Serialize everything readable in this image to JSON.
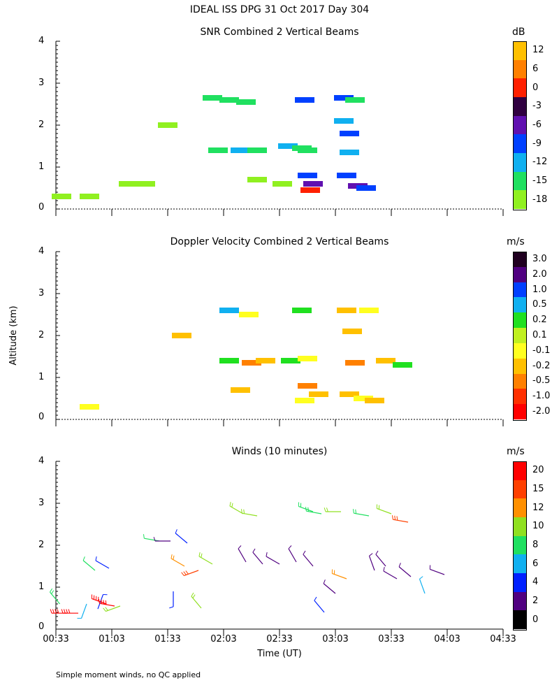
{
  "title": "IDEAL ISS DPG  31 Oct 2017 Day 304",
  "y_axis_label": "Altitude (km)",
  "x_axis_label": "Time (UT)",
  "footnote": "Simple moment winds, no QC applied",
  "x_ticks": [
    "00:33",
    "01:03",
    "01:33",
    "02:03",
    "02:33",
    "03:03",
    "03:33",
    "04:03",
    "04:33"
  ],
  "panels": [
    {
      "title": "SNR Combined 2 Vertical Beams",
      "unit": "dB",
      "y_ticks": [
        "4",
        "3",
        "2",
        "1",
        "0"
      ],
      "colorbar": [
        {
          "label": "12",
          "color": "#FFC000"
        },
        {
          "label": "6",
          "color": "#FF8000"
        },
        {
          "label": "0",
          "color": "#FF2000"
        },
        {
          "label": "-3",
          "color": "#300040"
        },
        {
          "label": "-6",
          "color": "#6010B0"
        },
        {
          "label": "-9",
          "color": "#0040FF"
        },
        {
          "label": "-12",
          "color": "#10B0F0"
        },
        {
          "label": "-15",
          "color": "#20E060"
        },
        {
          "label": "-18",
          "color": "#90F020"
        }
      ]
    },
    {
      "title": "Doppler Velocity Combined 2 Vertical Beams",
      "unit": "m/s",
      "y_ticks": [
        "4",
        "3",
        "2",
        "1",
        "0"
      ],
      "colorbar": [
        {
          "label": "3.0",
          "color": "#200020"
        },
        {
          "label": "2.0",
          "color": "#500080"
        },
        {
          "label": "1.0",
          "color": "#0040FF"
        },
        {
          "label": "0.5",
          "color": "#10B0F0"
        },
        {
          "label": "0.2",
          "color": "#20E020"
        },
        {
          "label": "0.1",
          "color": "#C0F020"
        },
        {
          "label": "-0.1",
          "color": "#FFFF20"
        },
        {
          "label": "-0.2",
          "color": "#FFC000"
        },
        {
          "label": "-0.5",
          "color": "#FF8000"
        },
        {
          "label": "-1.0",
          "color": "#FF3000"
        },
        {
          "label": "-2.0",
          "color": "#FF0000"
        }
      ]
    },
    {
      "title": "Winds (10 minutes)",
      "unit": "m/s",
      "y_ticks": [
        "4",
        "3",
        "2",
        "1",
        "0"
      ],
      "colorbar": [
        {
          "label": "20",
          "color": "#FF0000"
        },
        {
          "label": "15",
          "color": "#FF4000"
        },
        {
          "label": "12",
          "color": "#FF9000"
        },
        {
          "label": "10",
          "color": "#90E020"
        },
        {
          "label": "8",
          "color": "#20E060"
        },
        {
          "label": "6",
          "color": "#10B0F0"
        },
        {
          "label": "4",
          "color": "#0020FF"
        },
        {
          "label": "2",
          "color": "#500080"
        },
        {
          "label": "0",
          "color": "#000000"
        }
      ]
    }
  ],
  "chart_data": [
    {
      "type": "heatmap",
      "title": "SNR Combined 2 Vertical Beams",
      "xlabel": "Time (UT)",
      "ylabel": "Altitude (km)",
      "ylim": [
        0,
        4
      ],
      "xlim": [
        "00:33",
        "04:33"
      ],
      "unit": "dB",
      "cells": [
        {
          "t": 0.1,
          "alt": 0.3,
          "v": -18
        },
        {
          "t": 0.6,
          "alt": 0.3,
          "v": -18
        },
        {
          "t": 1.3,
          "alt": 0.6,
          "v": -18
        },
        {
          "t": 1.6,
          "alt": 0.6,
          "v": -18
        },
        {
          "t": 2.8,
          "alt": 2.65,
          "v": -15
        },
        {
          "t": 3.1,
          "alt": 2.6,
          "v": -15
        },
        {
          "t": 3.4,
          "alt": 2.55,
          "v": -15
        },
        {
          "t": 2.0,
          "alt": 2.0,
          "v": -18
        },
        {
          "t": 2.9,
          "alt": 1.4,
          "v": -15
        },
        {
          "t": 3.3,
          "alt": 1.4,
          "v": -12
        },
        {
          "t": 3.6,
          "alt": 1.4,
          "v": -15
        },
        {
          "t": 4.15,
          "alt": 1.5,
          "v": -12
        },
        {
          "t": 4.4,
          "alt": 1.45,
          "v": -15
        },
        {
          "t": 4.5,
          "alt": 0.8,
          "v": -9
        },
        {
          "t": 4.55,
          "alt": 0.45,
          "v": 0
        },
        {
          "t": 4.6,
          "alt": 0.6,
          "v": -6
        },
        {
          "t": 4.45,
          "alt": 2.6,
          "v": -9
        },
        {
          "t": 4.5,
          "alt": 1.4,
          "v": -15
        },
        {
          "t": 5.15,
          "alt": 2.65,
          "v": -9
        },
        {
          "t": 5.35,
          "alt": 2.6,
          "v": -15
        },
        {
          "t": 5.15,
          "alt": 2.1,
          "v": -12
        },
        {
          "t": 5.25,
          "alt": 1.8,
          "v": -9
        },
        {
          "t": 5.25,
          "alt": 1.35,
          "v": -12
        },
        {
          "t": 5.2,
          "alt": 0.8,
          "v": -9
        },
        {
          "t": 5.4,
          "alt": 0.55,
          "v": -6
        },
        {
          "t": 5.55,
          "alt": 0.5,
          "v": -9
        },
        {
          "t": 3.6,
          "alt": 0.7,
          "v": -18
        },
        {
          "t": 4.05,
          "alt": 0.6,
          "v": -18
        }
      ]
    },
    {
      "type": "heatmap",
      "title": "Doppler Velocity Combined 2 Vertical Beams",
      "xlabel": "Time (UT)",
      "ylabel": "Altitude (km)",
      "ylim": [
        0,
        4
      ],
      "xlim": [
        "00:33",
        "04:33"
      ],
      "unit": "m/s",
      "cells": [
        {
          "t": 0.6,
          "alt": 0.3,
          "v": -0.1
        },
        {
          "t": 2.25,
          "alt": 2.0,
          "v": -0.2
        },
        {
          "t": 3.1,
          "alt": 2.6,
          "v": 0.5
        },
        {
          "t": 3.1,
          "alt": 1.4,
          "v": 0.2
        },
        {
          "t": 3.45,
          "alt": 2.5,
          "v": -0.1
        },
        {
          "t": 3.3,
          "alt": 0.7,
          "v": -0.2
        },
        {
          "t": 3.5,
          "alt": 1.35,
          "v": -0.5
        },
        {
          "t": 3.75,
          "alt": 1.4,
          "v": -0.2
        },
        {
          "t": 4.2,
          "alt": 1.4,
          "v": 0.2
        },
        {
          "t": 4.4,
          "alt": 2.6,
          "v": 0.2
        },
        {
          "t": 4.5,
          "alt": 1.45,
          "v": -0.1
        },
        {
          "t": 4.5,
          "alt": 0.8,
          "v": -0.5
        },
        {
          "t": 4.45,
          "alt": 0.45,
          "v": -0.1
        },
        {
          "t": 4.7,
          "alt": 0.6,
          "v": -0.2
        },
        {
          "t": 5.2,
          "alt": 2.6,
          "v": -0.2
        },
        {
          "t": 5.3,
          "alt": 2.1,
          "v": -0.2
        },
        {
          "t": 5.35,
          "alt": 1.35,
          "v": -0.5
        },
        {
          "t": 5.25,
          "alt": 0.6,
          "v": -0.2
        },
        {
          "t": 5.5,
          "alt": 0.5,
          "v": -0.1
        },
        {
          "t": 5.7,
          "alt": 0.45,
          "v": -0.2
        },
        {
          "t": 5.6,
          "alt": 2.6,
          "v": -0.1
        },
        {
          "t": 5.9,
          "alt": 1.4,
          "v": -0.2
        },
        {
          "t": 6.2,
          "alt": 1.3,
          "v": 0.2
        }
      ]
    },
    {
      "type": "scatter",
      "title": "Winds (10 minutes)",
      "xlabel": "Time (UT)",
      "ylabel": "Altitude (km)",
      "ylim": [
        0,
        4
      ],
      "xlim": [
        "00:33",
        "04:33"
      ],
      "unit": "m/s",
      "barbs": [
        {
          "t": 0.07,
          "alt": 0.6,
          "speed": 8,
          "dir": 320
        },
        {
          "t": 0.2,
          "alt": 0.38,
          "speed": 20,
          "dir": 270
        },
        {
          "t": 0.4,
          "alt": 0.38,
          "speed": 20,
          "dir": 270
        },
        {
          "t": 0.55,
          "alt": 0.6,
          "speed": 5,
          "dir": 200
        },
        {
          "t": 0.75,
          "alt": 0.48,
          "speed": 3,
          "dir": 20
        },
        {
          "t": 0.9,
          "alt": 0.6,
          "speed": 20,
          "dir": 290
        },
        {
          "t": 1.05,
          "alt": 0.55,
          "speed": 20,
          "dir": 280
        },
        {
          "t": 1.15,
          "alt": 0.55,
          "speed": 10,
          "dir": 250
        },
        {
          "t": 0.7,
          "alt": 1.4,
          "speed": 7,
          "dir": 310
        },
        {
          "t": 0.95,
          "alt": 1.45,
          "speed": 3,
          "dir": 300
        },
        {
          "t": 1.85,
          "alt": 2.1,
          "speed": 7,
          "dir": 280
        },
        {
          "t": 2.05,
          "alt": 2.1,
          "speed": 2,
          "dir": 270
        },
        {
          "t": 2.35,
          "alt": 2.05,
          "speed": 3,
          "dir": 310
        },
        {
          "t": 2.1,
          "alt": 0.9,
          "speed": 3,
          "dir": 180
        },
        {
          "t": 2.3,
          "alt": 1.5,
          "speed": 12,
          "dir": 300
        },
        {
          "t": 2.55,
          "alt": 1.4,
          "speed": 15,
          "dir": 250
        },
        {
          "t": 2.8,
          "alt": 1.55,
          "speed": 10,
          "dir": 300
        },
        {
          "t": 2.6,
          "alt": 0.5,
          "speed": 10,
          "dir": 320
        },
        {
          "t": 3.35,
          "alt": 2.75,
          "speed": 10,
          "dir": 300
        },
        {
          "t": 3.6,
          "alt": 2.7,
          "speed": 10,
          "dir": 280
        },
        {
          "t": 4.6,
          "alt": 2.8,
          "speed": 8,
          "dir": 290
        },
        {
          "t": 4.75,
          "alt": 2.75,
          "speed": 8,
          "dir": 280
        },
        {
          "t": 5.1,
          "alt": 2.8,
          "speed": 10,
          "dir": 270
        },
        {
          "t": 5.6,
          "alt": 2.7,
          "speed": 8,
          "dir": 280
        },
        {
          "t": 6.0,
          "alt": 2.75,
          "speed": 10,
          "dir": 290
        },
        {
          "t": 6.3,
          "alt": 2.55,
          "speed": 15,
          "dir": 280
        },
        {
          "t": 3.4,
          "alt": 1.6,
          "speed": 2,
          "dir": 330
        },
        {
          "t": 3.7,
          "alt": 1.55,
          "speed": 2,
          "dir": 320
        },
        {
          "t": 4.0,
          "alt": 1.55,
          "speed": 2,
          "dir": 300
        },
        {
          "t": 4.3,
          "alt": 1.6,
          "speed": 2,
          "dir": 330
        },
        {
          "t": 4.6,
          "alt": 1.5,
          "speed": 2,
          "dir": 320
        },
        {
          "t": 4.8,
          "alt": 0.4,
          "speed": 3,
          "dir": 320
        },
        {
          "t": 5.0,
          "alt": 0.85,
          "speed": 2,
          "dir": 310
        },
        {
          "t": 5.2,
          "alt": 1.2,
          "speed": 12,
          "dir": 290
        },
        {
          "t": 5.7,
          "alt": 1.4,
          "speed": 2,
          "dir": 340
        },
        {
          "t": 5.9,
          "alt": 1.5,
          "speed": 2,
          "dir": 320
        },
        {
          "t": 6.1,
          "alt": 1.2,
          "speed": 2,
          "dir": 300
        },
        {
          "t": 6.35,
          "alt": 1.25,
          "speed": 2,
          "dir": 310
        },
        {
          "t": 6.6,
          "alt": 0.85,
          "speed": 6,
          "dir": 340
        },
        {
          "t": 6.95,
          "alt": 1.3,
          "speed": 2,
          "dir": 290
        }
      ]
    }
  ]
}
